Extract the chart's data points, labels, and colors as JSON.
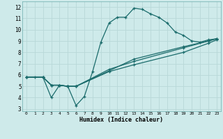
{
  "xlabel": "Humidex (Indice chaleur)",
  "bg_color": "#ceeaea",
  "grid_color": "#b8d8d8",
  "line_color": "#1a6b6b",
  "xlim": [
    -0.5,
    23.5
  ],
  "ylim": [
    2.8,
    12.5
  ],
  "xticks": [
    0,
    1,
    2,
    3,
    4,
    5,
    6,
    7,
    8,
    9,
    10,
    11,
    12,
    13,
    14,
    15,
    16,
    17,
    18,
    19,
    20,
    21,
    22,
    23
  ],
  "yticks": [
    3,
    4,
    5,
    6,
    7,
    8,
    9,
    10,
    11,
    12
  ],
  "line1_x": [
    0,
    1,
    2,
    3,
    4,
    5,
    6,
    7,
    8,
    9,
    10,
    11,
    12,
    13,
    14,
    15,
    16,
    17,
    18,
    19,
    20,
    21,
    22,
    23
  ],
  "line1_y": [
    5.8,
    5.8,
    5.8,
    4.0,
    5.1,
    5.0,
    3.3,
    4.1,
    6.3,
    8.9,
    10.6,
    11.1,
    11.1,
    11.9,
    11.8,
    11.4,
    11.1,
    10.6,
    9.8,
    9.5,
    9.0,
    8.9,
    9.1,
    9.2
  ],
  "line2_x": [
    0,
    2,
    3,
    4,
    5,
    6,
    10,
    13,
    19,
    22,
    23
  ],
  "line2_y": [
    5.8,
    5.8,
    5.1,
    5.1,
    5.0,
    5.0,
    6.5,
    7.2,
    8.4,
    9.0,
    9.2
  ],
  "line3_x": [
    0,
    2,
    3,
    4,
    5,
    6,
    10,
    13,
    19,
    22,
    23
  ],
  "line3_y": [
    5.8,
    5.8,
    5.1,
    5.1,
    5.0,
    5.0,
    6.3,
    6.9,
    8.0,
    8.8,
    9.1
  ],
  "line4_x": [
    0,
    2,
    3,
    4,
    5,
    6,
    13,
    19,
    22,
    23
  ],
  "line4_y": [
    5.8,
    5.8,
    5.1,
    5.1,
    5.0,
    5.0,
    7.4,
    8.5,
    9.0,
    9.2
  ]
}
